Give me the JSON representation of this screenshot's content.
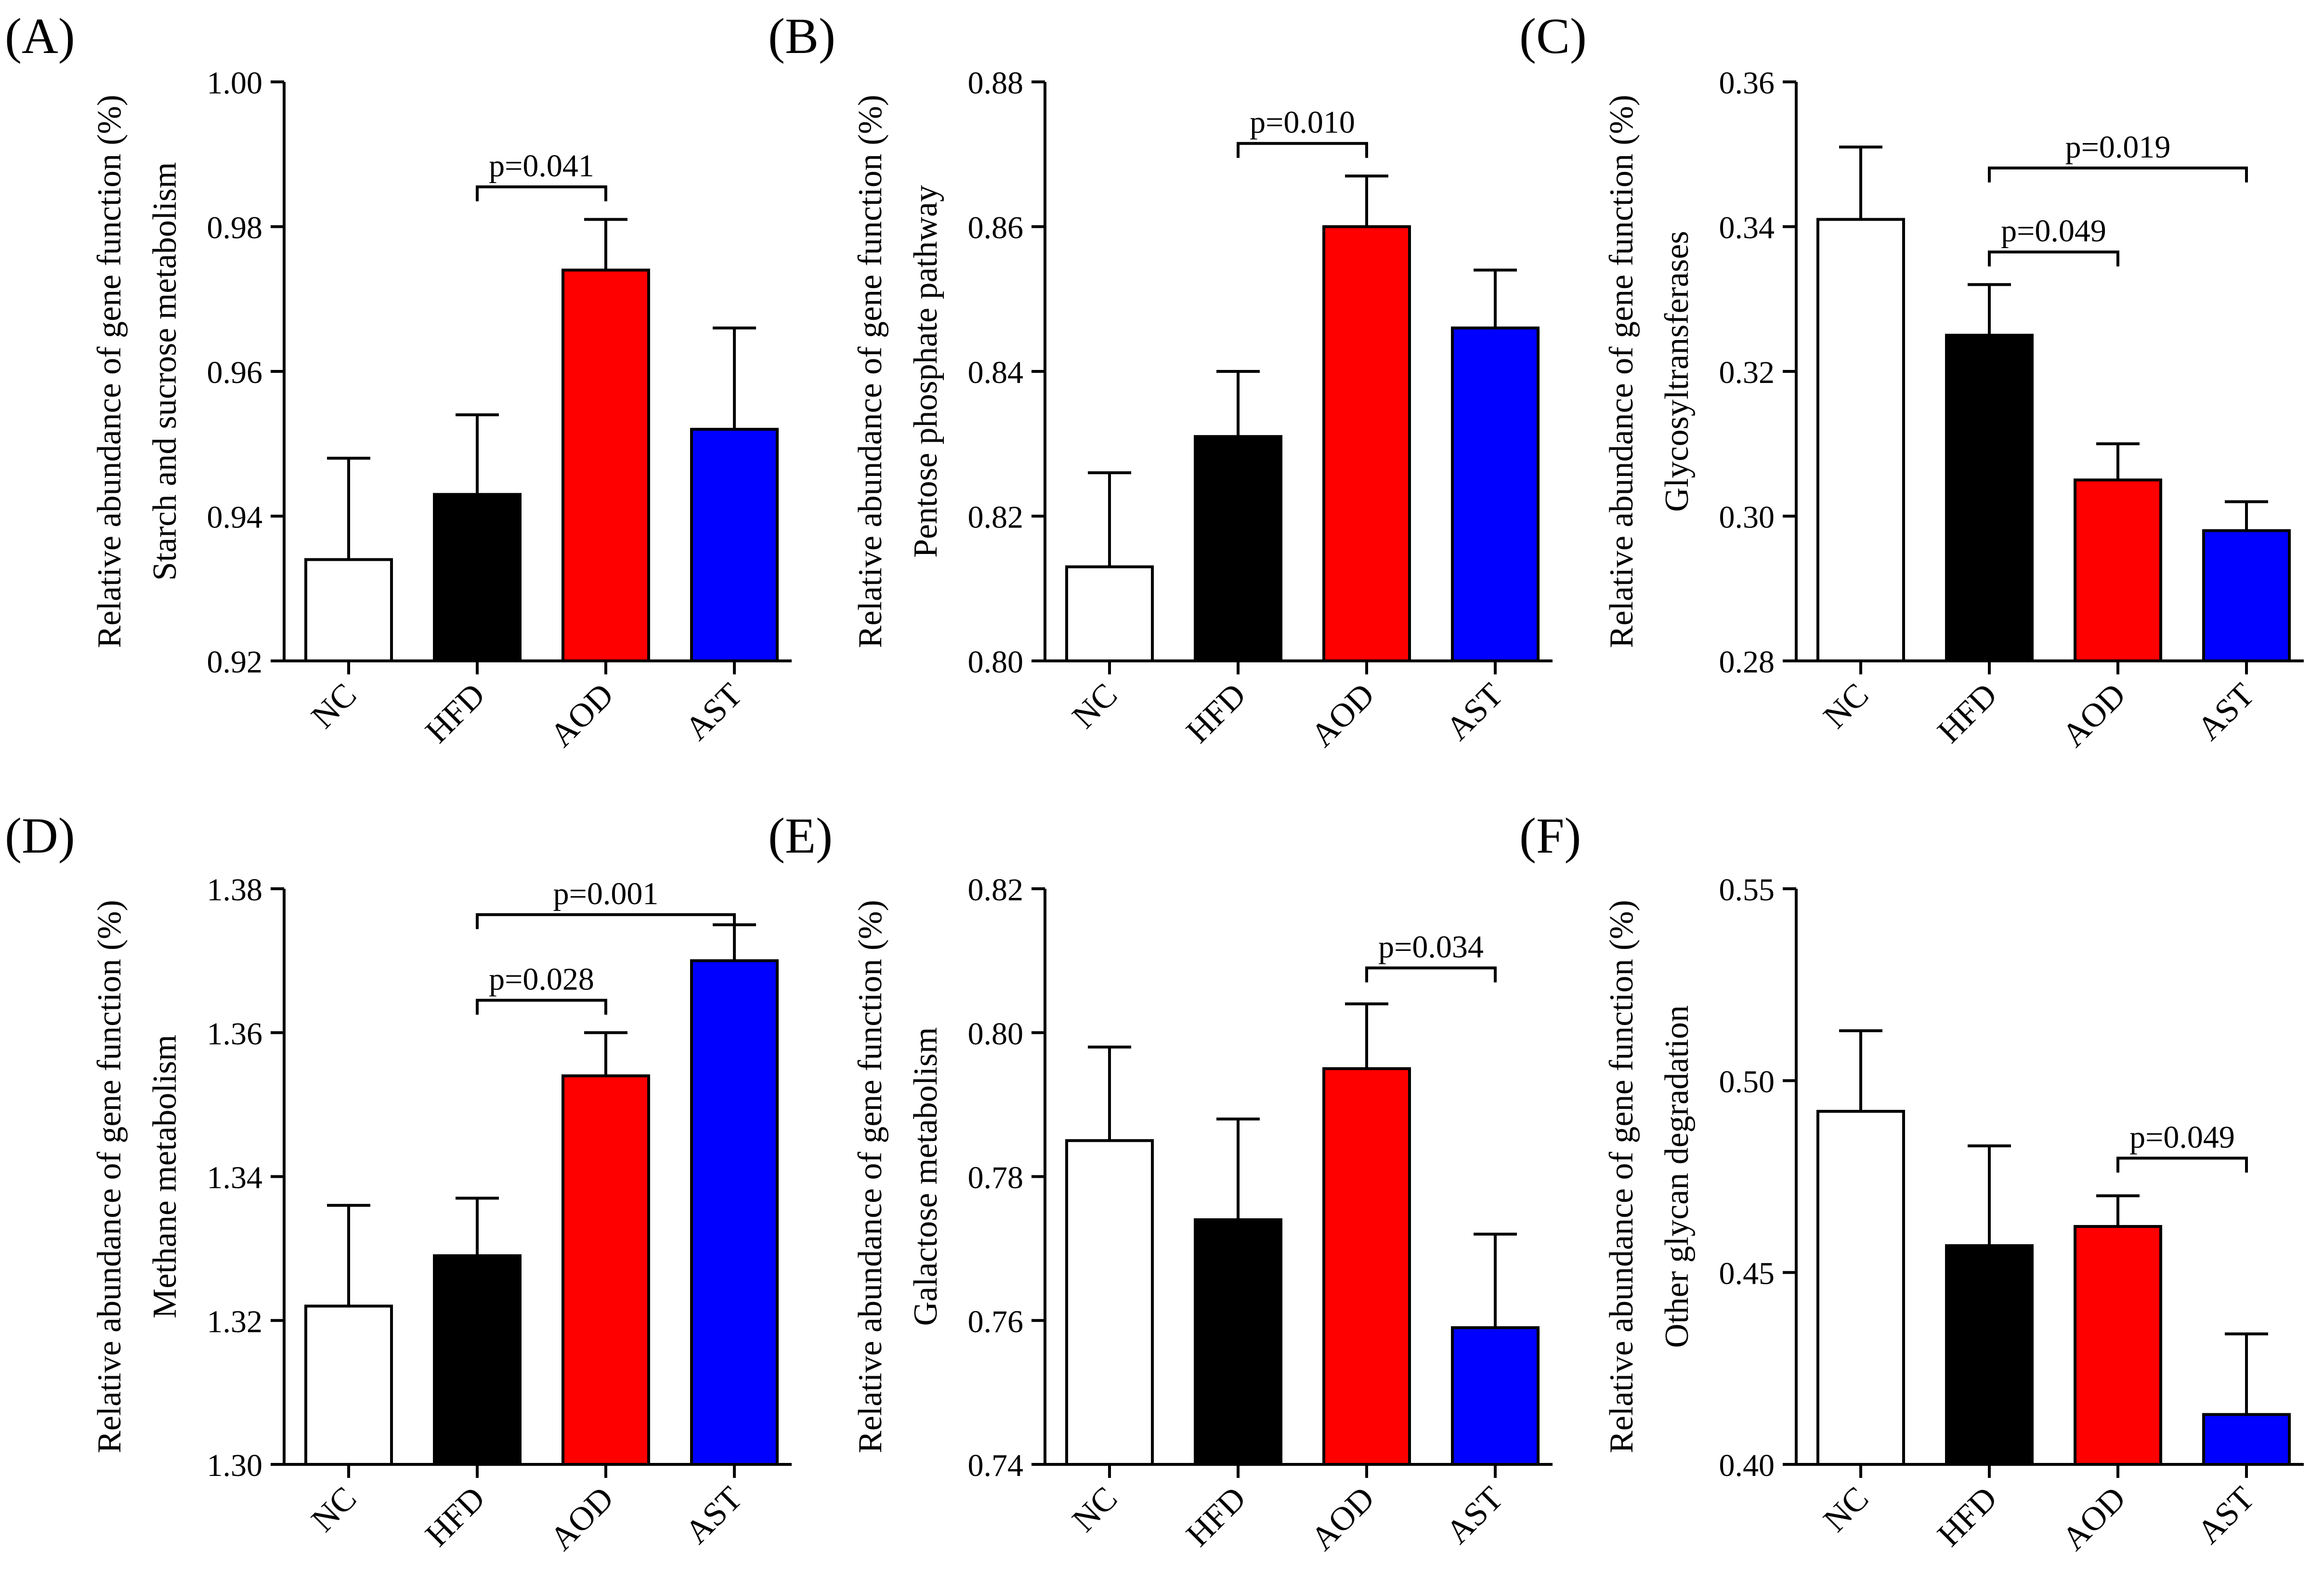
{
  "chart_data": [
    {
      "panel": "(A)",
      "type": "bar",
      "ylabel_line1": "Relative abundance of gene function (%)",
      "ylabel_line2": "Starch and sucrose metabolism",
      "categories": [
        "NC",
        "HFD",
        "AOD",
        "AST"
      ],
      "values": [
        0.934,
        0.943,
        0.974,
        0.952
      ],
      "errors": [
        0.014,
        0.011,
        0.007,
        0.014
      ],
      "colors": [
        "#ffffff",
        "#000000",
        "#ff0000",
        "#0000ff"
      ],
      "ylim": [
        0.92,
        1.0
      ],
      "yticks": [
        0.92,
        0.94,
        0.96,
        0.98,
        1.0
      ],
      "tick_decimals": 2,
      "annotations": [
        {
          "from": 1,
          "to": 2,
          "text": "p=0.041",
          "at": 0.9855
        }
      ]
    },
    {
      "panel": "(B)",
      "type": "bar",
      "ylabel_line1": "Relative abundance of gene function (%)",
      "ylabel_line2": "Pentose phosphate pathway",
      "categories": [
        "NC",
        "HFD",
        "AOD",
        "AST"
      ],
      "values": [
        0.813,
        0.831,
        0.86,
        0.846
      ],
      "errors": [
        0.013,
        0.009,
        0.007,
        0.008
      ],
      "colors": [
        "#ffffff",
        "#000000",
        "#ff0000",
        "#0000ff"
      ],
      "ylim": [
        0.8,
        0.88
      ],
      "yticks": [
        0.8,
        0.82,
        0.84,
        0.86,
        0.88
      ],
      "tick_decimals": 2,
      "annotations": [
        {
          "from": 1,
          "to": 2,
          "text": "p=0.010",
          "at": 0.8715
        }
      ]
    },
    {
      "panel": "(C)",
      "type": "bar",
      "ylabel_line1": "Relative abundance of gene function (%)",
      "ylabel_line2": "Glycosyltransferases",
      "categories": [
        "NC",
        "HFD",
        "AOD",
        "AST"
      ],
      "values": [
        0.341,
        0.325,
        0.305,
        0.298
      ],
      "errors": [
        0.01,
        0.007,
        0.005,
        0.004
      ],
      "colors": [
        "#ffffff",
        "#000000",
        "#ff0000",
        "#0000ff"
      ],
      "ylim": [
        0.28,
        0.36
      ],
      "yticks": [
        0.28,
        0.3,
        0.32,
        0.34,
        0.36
      ],
      "tick_decimals": 2,
      "annotations": [
        {
          "from": 1,
          "to": 2,
          "text": "p=0.049",
          "at": 0.3365
        },
        {
          "from": 1,
          "to": 3,
          "text": "p=0.019",
          "at": 0.3481
        }
      ]
    },
    {
      "panel": "(D)",
      "type": "bar",
      "ylabel_line1": "Relative abundance of gene function (%)",
      "ylabel_line2": "Methane metabolism",
      "categories": [
        "NC",
        "HFD",
        "AOD",
        "AST"
      ],
      "values": [
        1.322,
        1.329,
        1.354,
        1.37
      ],
      "errors": [
        0.014,
        0.008,
        0.006,
        0.005
      ],
      "colors": [
        "#ffffff",
        "#000000",
        "#ff0000",
        "#0000ff"
      ],
      "ylim": [
        1.3,
        1.38
      ],
      "yticks": [
        1.3,
        1.32,
        1.34,
        1.36,
        1.38
      ],
      "tick_decimals": 2,
      "annotations": [
        {
          "from": 1,
          "to": 2,
          "text": "p=0.028",
          "at": 1.3645
        },
        {
          "from": 1,
          "to": 3,
          "text": "p=0.001",
          "at": 1.3764
        }
      ]
    },
    {
      "panel": "(E)",
      "type": "bar",
      "ylabel_line1": "Relative abundance of gene function (%)",
      "ylabel_line2": "Galactose metabolism",
      "categories": [
        "NC",
        "HFD",
        "AOD",
        "AST"
      ],
      "values": [
        0.785,
        0.774,
        0.795,
        0.759
      ],
      "errors": [
        0.013,
        0.014,
        0.009,
        0.013
      ],
      "colors": [
        "#ffffff",
        "#000000",
        "#ff0000",
        "#0000ff"
      ],
      "ylim": [
        0.74,
        0.82
      ],
      "yticks": [
        0.74,
        0.76,
        0.78,
        0.8,
        0.82
      ],
      "tick_decimals": 2,
      "annotations": [
        {
          "from": 2,
          "to": 3,
          "text": "p=0.034",
          "at": 0.809
        }
      ]
    },
    {
      "panel": "(F)",
      "type": "bar",
      "ylabel_line1": "Relative abundance of gene function (%)",
      "ylabel_line2": "Other glycan degradation",
      "categories": [
        "NC",
        "HFD",
        "AOD",
        "AST"
      ],
      "values": [
        0.492,
        0.457,
        0.462,
        0.413
      ],
      "errors": [
        0.021,
        0.026,
        0.008,
        0.021
      ],
      "colors": [
        "#ffffff",
        "#000000",
        "#ff0000",
        "#0000ff"
      ],
      "ylim": [
        0.4,
        0.55
      ],
      "yticks": [
        0.4,
        0.45,
        0.5,
        0.55
      ],
      "tick_decimals": 2,
      "annotations": [
        {
          "from": 2,
          "to": 3,
          "text": "p=0.049",
          "at": 0.4798
        }
      ]
    }
  ]
}
